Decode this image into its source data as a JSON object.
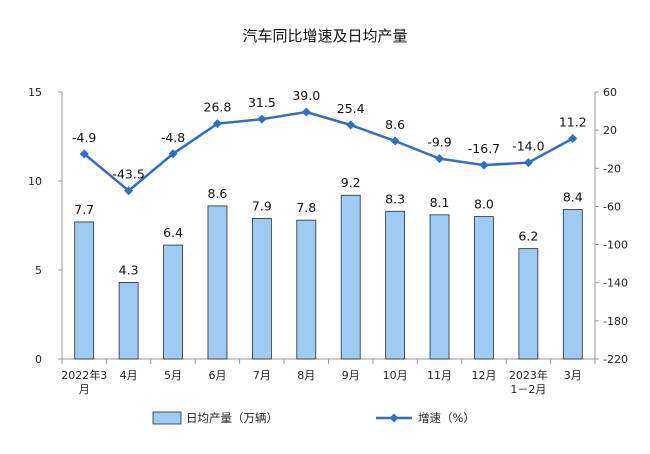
{
  "chart_data": {
    "type": "bar+line",
    "title": "汽车同比增速及日均产量",
    "categories": [
      [
        "2022年3",
        "月"
      ],
      [
        "4月"
      ],
      [
        "5月"
      ],
      [
        "6月"
      ],
      [
        "7月"
      ],
      [
        "8月"
      ],
      [
        "9月"
      ],
      [
        "10月"
      ],
      [
        "11月"
      ],
      [
        "12月"
      ],
      [
        "2023年",
        "1－2月"
      ],
      [
        "3月"
      ]
    ],
    "series": [
      {
        "name": "日均产量（万辆）",
        "type": "bar",
        "axis": "left",
        "values": [
          7.7,
          4.3,
          6.4,
          8.6,
          7.9,
          7.8,
          9.2,
          8.3,
          8.1,
          8.0,
          6.2,
          8.4
        ],
        "labels": [
          "7.7",
          "4.3",
          "6.4",
          "8.6",
          "7.9",
          "7.8",
          "9.2",
          "8.3",
          "8.1",
          "8.0",
          "6.2",
          "8.4"
        ],
        "color": "#9fcbf2"
      },
      {
        "name": "增速（%）",
        "type": "line",
        "axis": "right",
        "values": [
          -4.9,
          -43.5,
          -4.8,
          26.8,
          31.5,
          39.0,
          25.4,
          8.6,
          -9.9,
          -16.7,
          -14.0,
          11.2
        ],
        "labels": [
          "-4.9",
          "-43.5",
          "-4.8",
          "26.8",
          "31.5",
          "39.0",
          "25.4",
          "8.6",
          "-9.9",
          "-16.7",
          "-14.0",
          "11.2"
        ],
        "color": "#2f6fc4"
      }
    ],
    "y_left": {
      "min": 0,
      "max": 15,
      "ticks": [
        0,
        5,
        10,
        15
      ],
      "tick_labels": [
        "0",
        "5",
        "10",
        "15"
      ]
    },
    "y_right": {
      "min": -220,
      "max": 60,
      "ticks": [
        60,
        20,
        -20,
        -60,
        -100,
        -140,
        -180,
        -220
      ],
      "tick_labels": [
        "60",
        "20",
        "-20",
        "-60",
        "-100",
        "-140",
        "-180",
        "-220"
      ]
    },
    "grid": false,
    "legend_position": "bottom"
  }
}
